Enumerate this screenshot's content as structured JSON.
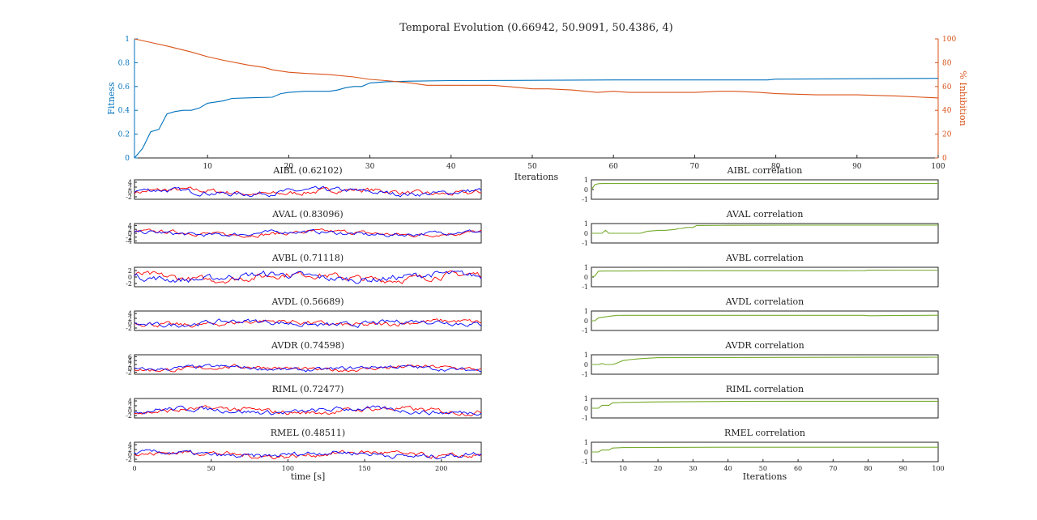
{
  "colors": {
    "fitness": "#0072bd",
    "inhibition": "#d95319",
    "trace_model": "#0000ff",
    "trace_data": "#ff0000",
    "correlation": "#77ac30"
  },
  "chart_data": [
    {
      "type": "line",
      "title": "Temporal Evolution (0.66942, 50.9091, 50.4386, 4)",
      "xlabel": "Iterations",
      "ylabel_left": "Fitness",
      "ylabel_right": "% Inhibition",
      "xlim": [
        1,
        100
      ],
      "ylim_left": [
        0,
        1
      ],
      "ylim_right": [
        0,
        100
      ],
      "xticks": [
        10,
        20,
        30,
        40,
        50,
        60,
        70,
        80,
        90,
        100
      ],
      "yticks_left": [
        0,
        0.2,
        0.4,
        0.6,
        0.8,
        1
      ],
      "yticks_right": [
        0,
        20,
        40,
        60,
        80,
        100
      ],
      "series": [
        {
          "name": "Fitness",
          "axis": "left",
          "x": [
            1,
            2,
            3,
            4,
            5,
            6,
            7,
            8,
            9,
            10,
            11,
            12,
            13,
            15,
            18,
            19,
            20,
            22,
            25,
            26,
            27,
            28,
            29,
            30,
            32,
            35,
            40,
            50,
            60,
            70,
            79,
            80,
            90,
            100
          ],
          "y": [
            0.0,
            0.08,
            0.22,
            0.24,
            0.37,
            0.39,
            0.4,
            0.4,
            0.42,
            0.46,
            0.47,
            0.48,
            0.5,
            0.505,
            0.51,
            0.54,
            0.55,
            0.56,
            0.56,
            0.57,
            0.59,
            0.6,
            0.6,
            0.63,
            0.64,
            0.645,
            0.65,
            0.652,
            0.655,
            0.655,
            0.655,
            0.662,
            0.665,
            0.669
          ]
        },
        {
          "name": "% Inhibition",
          "axis": "right",
          "x": [
            1,
            3,
            5,
            8,
            10,
            12,
            15,
            17,
            18,
            20,
            22,
            25,
            28,
            30,
            32,
            35,
            37,
            40,
            42,
            45,
            47,
            50,
            52,
            55,
            58,
            60,
            62,
            65,
            70,
            73,
            75,
            78,
            80,
            85,
            90,
            95,
            98,
            100
          ],
          "y": [
            100,
            97,
            94,
            89,
            85,
            82,
            78,
            76,
            74,
            72,
            71,
            70,
            68,
            66,
            65,
            63,
            61,
            61,
            61,
            61,
            60,
            58,
            58,
            57,
            55,
            56,
            55,
            55,
            55,
            56,
            56,
            55,
            54,
            53,
            53,
            52,
            51,
            50.4
          ]
        }
      ]
    },
    {
      "type": "line",
      "panels": [
        {
          "title": "AIBL (0.62102)",
          "yticks": [
            -2,
            0,
            2,
            4
          ],
          "ylim": [
            -3,
            5
          ]
        },
        {
          "title": "AVAL (0.83096)",
          "yticks": [
            -4,
            -2,
            0,
            2,
            4
          ],
          "ylim": [
            -5,
            5
          ]
        },
        {
          "title": "AVBL (0.71118)",
          "yticks": [
            -2,
            0,
            2
          ],
          "ylim": [
            -3,
            3
          ]
        },
        {
          "title": "AVDL (0.56689)",
          "yticks": [
            -2,
            0,
            2,
            4
          ],
          "ylim": [
            -3,
            5
          ]
        },
        {
          "title": "AVDR (0.74598)",
          "yticks": [
            -2,
            0,
            2,
            4,
            6
          ],
          "ylim": [
            -3,
            7
          ]
        },
        {
          "title": "RIML (0.72477)",
          "yticks": [
            -2,
            0,
            2,
            4
          ],
          "ylim": [
            -3,
            5
          ]
        },
        {
          "title": "RMEL (0.48511)",
          "yticks": [
            -2,
            0,
            2,
            4
          ],
          "ylim": [
            -3,
            5
          ]
        }
      ],
      "xlabel": "time [s]",
      "xlim": [
        0,
        226
      ],
      "xticks": [
        0,
        50,
        100,
        150,
        200
      ]
    },
    {
      "type": "line",
      "xlabel": "Iterations",
      "xlim": [
        1,
        100
      ],
      "xticks": [
        10,
        20,
        30,
        40,
        50,
        60,
        70,
        80,
        90,
        100
      ],
      "yticks": [
        -1,
        0,
        1
      ],
      "ylim": [
        -1,
        1
      ],
      "panels": [
        {
          "title": "AIBL correlation",
          "x": [
            1,
            2,
            3,
            4,
            10,
            30,
            60,
            90,
            100
          ],
          "y": [
            0.0,
            0.5,
            0.6,
            0.62,
            0.62,
            0.62,
            0.62,
            0.62,
            0.62
          ]
        },
        {
          "title": "AVAL correlation",
          "x": [
            1,
            4,
            5,
            6,
            7,
            15,
            16,
            17,
            20,
            22,
            25,
            26,
            27,
            28,
            30,
            31,
            40,
            60,
            80,
            100
          ],
          "y": [
            0.0,
            0.0,
            0.3,
            0.0,
            0.0,
            0.0,
            0.1,
            0.2,
            0.3,
            0.3,
            0.4,
            0.5,
            0.5,
            0.6,
            0.6,
            0.8,
            0.82,
            0.83,
            0.83,
            0.83
          ]
        },
        {
          "title": "AVBL correlation",
          "x": [
            1,
            2,
            3,
            5,
            10,
            20,
            40,
            60,
            70,
            79,
            80,
            90,
            100
          ],
          "y": [
            0.0,
            0.1,
            0.6,
            0.62,
            0.62,
            0.64,
            0.65,
            0.65,
            0.65,
            0.66,
            0.7,
            0.71,
            0.71
          ]
        },
        {
          "title": "AVDL correlation",
          "x": [
            1,
            2,
            3,
            5,
            8,
            10,
            40,
            60,
            79,
            80,
            90,
            100
          ],
          "y": [
            0.0,
            0.0,
            0.3,
            0.4,
            0.55,
            0.56,
            0.56,
            0.56,
            0.56,
            0.52,
            0.55,
            0.57
          ]
        },
        {
          "title": "AVDR correlation",
          "x": [
            1,
            3,
            4,
            5,
            6,
            7,
            8,
            10,
            12,
            15,
            20,
            40,
            80,
            100
          ],
          "y": [
            0.0,
            0.0,
            0.1,
            0.0,
            0.0,
            0.0,
            0.1,
            0.4,
            0.5,
            0.6,
            0.7,
            0.72,
            0.74,
            0.75
          ]
        },
        {
          "title": "RIML correlation",
          "x": [
            1,
            3,
            4,
            6,
            7,
            10,
            20,
            40,
            60,
            100
          ],
          "y": [
            0.0,
            0.0,
            0.3,
            0.3,
            0.55,
            0.6,
            0.65,
            0.7,
            0.72,
            0.72
          ]
        },
        {
          "title": "RMEL correlation",
          "x": [
            1,
            3,
            4,
            6,
            7,
            10,
            20,
            40,
            100
          ],
          "y": [
            0.0,
            0.0,
            0.2,
            0.2,
            0.4,
            0.45,
            0.47,
            0.48,
            0.485
          ]
        }
      ]
    }
  ]
}
